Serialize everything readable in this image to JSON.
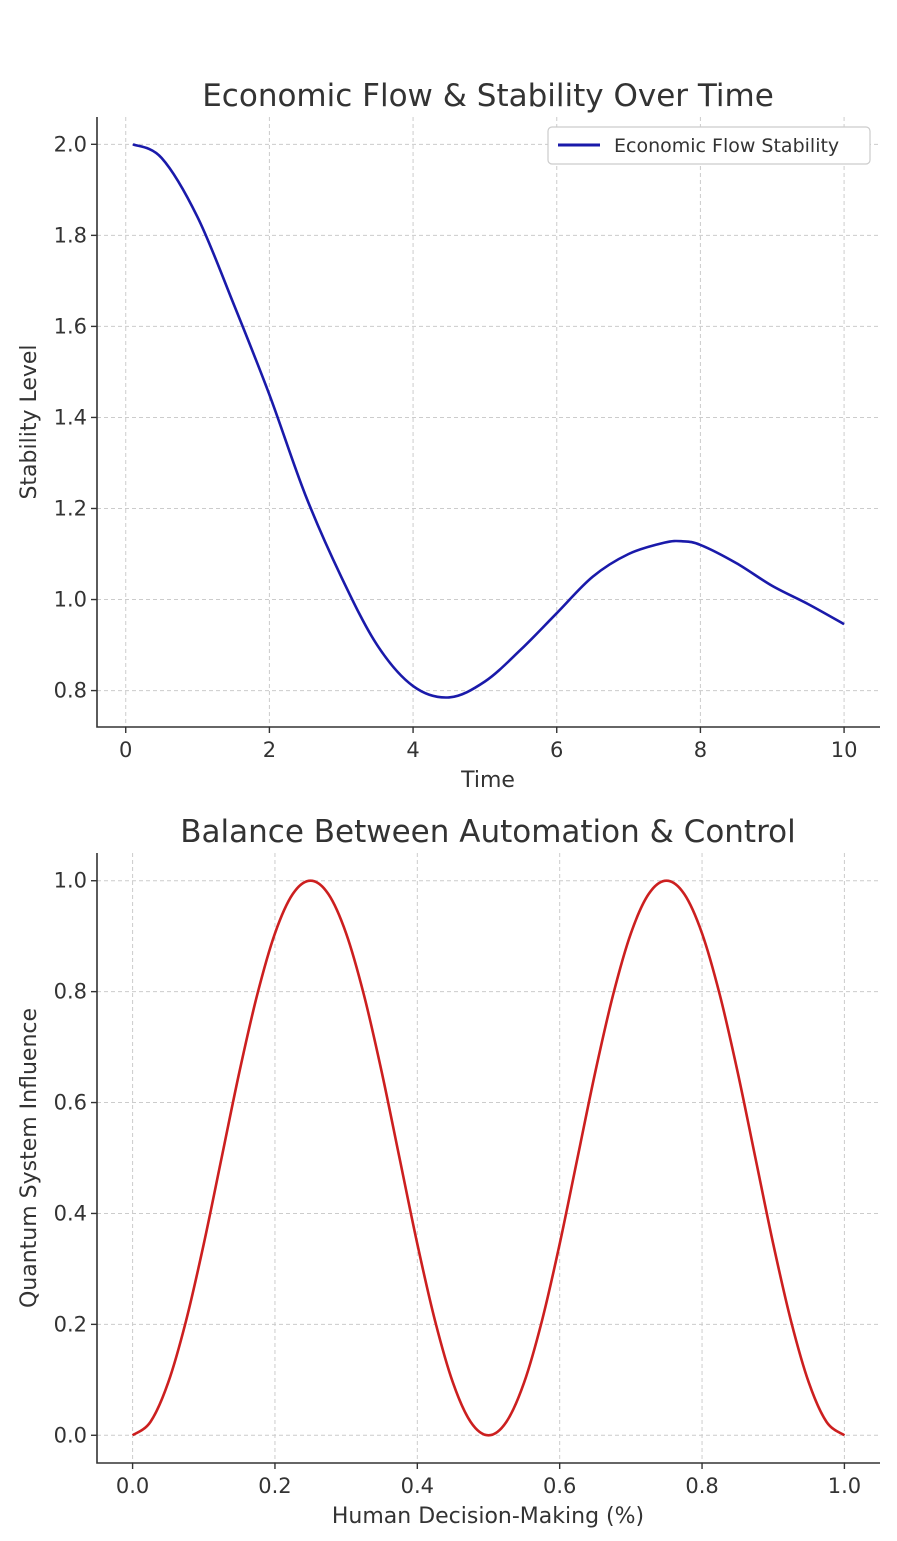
{
  "chart_data": [
    {
      "type": "line",
      "title": "Economic Flow & Stability Over Time",
      "xlabel": "Time",
      "ylabel": "Stability Level",
      "xlim": [
        -0.4,
        10.5
      ],
      "ylim": [
        0.72,
        2.06
      ],
      "xticks": [
        0,
        2,
        4,
        6,
        8,
        10
      ],
      "xtick_labels": [
        "0",
        "2",
        "4",
        "6",
        "8",
        "10"
      ],
      "yticks": [
        0.8,
        1.0,
        1.2,
        1.4,
        1.6,
        1.8,
        2.0
      ],
      "ytick_labels": [
        "0.8",
        "1.0",
        "1.2",
        "1.4",
        "1.6",
        "1.8",
        "2.0"
      ],
      "grid": true,
      "legend_position": "top-right",
      "series": [
        {
          "name": "Economic Flow Stability",
          "color": "#1a1aaa",
          "x": [
            0.1,
            0.5,
            1.0,
            1.5,
            2.0,
            2.5,
            3.0,
            3.5,
            4.0,
            4.5,
            5.0,
            5.5,
            6.0,
            6.5,
            7.0,
            7.5,
            7.75,
            8.0,
            8.5,
            9.0,
            9.5,
            10.0
          ],
          "y": [
            2.0,
            1.97,
            1.84,
            1.65,
            1.45,
            1.23,
            1.05,
            0.9,
            0.81,
            0.785,
            0.82,
            0.89,
            0.97,
            1.05,
            1.1,
            1.125,
            1.128,
            1.12,
            1.08,
            1.03,
            0.99,
            0.946
          ]
        }
      ]
    },
    {
      "type": "line",
      "title": "Balance Between Automation & Control",
      "xlabel": "Human Decision-Making (%)",
      "ylabel": "Quantum System Influence",
      "xlim": [
        -0.05,
        1.05
      ],
      "ylim": [
        -0.05,
        1.05
      ],
      "xticks": [
        0.0,
        0.2,
        0.4,
        0.6,
        0.8,
        1.0
      ],
      "xtick_labels": [
        "0.0",
        "0.2",
        "0.4",
        "0.6",
        "0.8",
        "1.0"
      ],
      "yticks": [
        0.0,
        0.2,
        0.4,
        0.6,
        0.8,
        1.0
      ],
      "ytick_labels": [
        "0.0",
        "0.2",
        "0.4",
        "0.6",
        "0.8",
        "1.0"
      ],
      "grid": true,
      "series": [
        {
          "color": "#cc1f1f",
          "x": [
            0.0,
            0.025,
            0.05,
            0.075,
            0.1,
            0.125,
            0.15,
            0.175,
            0.2,
            0.225,
            0.25,
            0.275,
            0.3,
            0.325,
            0.35,
            0.375,
            0.4,
            0.425,
            0.45,
            0.475,
            0.5,
            0.525,
            0.55,
            0.575,
            0.6,
            0.625,
            0.65,
            0.675,
            0.7,
            0.725,
            0.75,
            0.775,
            0.8,
            0.825,
            0.85,
            0.875,
            0.9,
            0.925,
            0.95,
            0.975,
            1.0
          ],
          "y": [
            0.0,
            0.024,
            0.095,
            0.206,
            0.345,
            0.5,
            0.655,
            0.794,
            0.905,
            0.976,
            1.0,
            0.976,
            0.905,
            0.794,
            0.655,
            0.5,
            0.345,
            0.206,
            0.095,
            0.024,
            0.0,
            0.024,
            0.095,
            0.206,
            0.345,
            0.5,
            0.655,
            0.794,
            0.905,
            0.976,
            1.0,
            0.976,
            0.905,
            0.794,
            0.655,
            0.5,
            0.345,
            0.206,
            0.095,
            0.024,
            0.0
          ]
        }
      ]
    }
  ]
}
